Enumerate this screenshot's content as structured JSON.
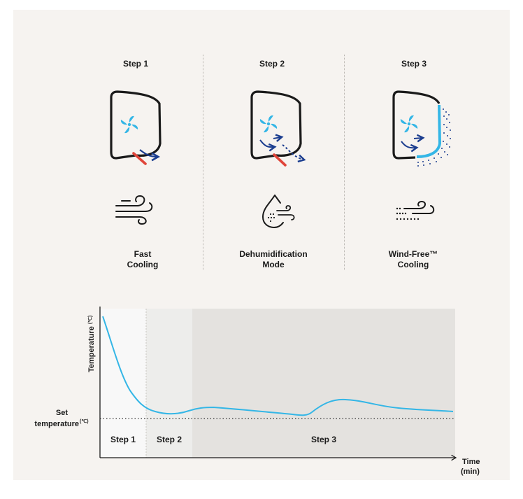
{
  "steps": [
    {
      "title": "Step 1",
      "mode_line1": "Fast",
      "mode_line2": "Cooling"
    },
    {
      "title": "Step 2",
      "mode_line1": "Dehumidification",
      "mode_line2": "Mode"
    },
    {
      "title": "Step 3",
      "mode_line1": "Wind-Free™",
      "mode_line2": "Cooling"
    }
  ],
  "icons": {
    "unit_icons": [
      "air-conditioner-fast-cooling-icon",
      "air-conditioner-dehumidification-icon",
      "air-conditioner-wind-free-icon"
    ],
    "mode_icons": [
      "wind-icon",
      "water-drop-icon",
      "wind-free-dots-icon"
    ]
  },
  "colors": {
    "background": "#f6f3f0",
    "curve": "#34b6e6",
    "arrow_navy": "#1b3d8f",
    "accent_red": "#e0453a",
    "unit_outline": "#1a1a1a",
    "zone_step1": "#f8f8f8",
    "zone_step2": "#ededeb",
    "zone_step3": "#e4e2df"
  },
  "chart_data": {
    "type": "line",
    "ylabel": "Temperature",
    "ylabel_unit": "(℃)",
    "xlabel": "Time",
    "xlabel_unit": "(min)",
    "set_temperature_label": "Set",
    "set_temperature_label2": "temperature",
    "set_temperature_unit": "(℃)",
    "zones": [
      "Step 1",
      "Step 2",
      "Step 3"
    ],
    "grid": false,
    "legend": "none"
  }
}
